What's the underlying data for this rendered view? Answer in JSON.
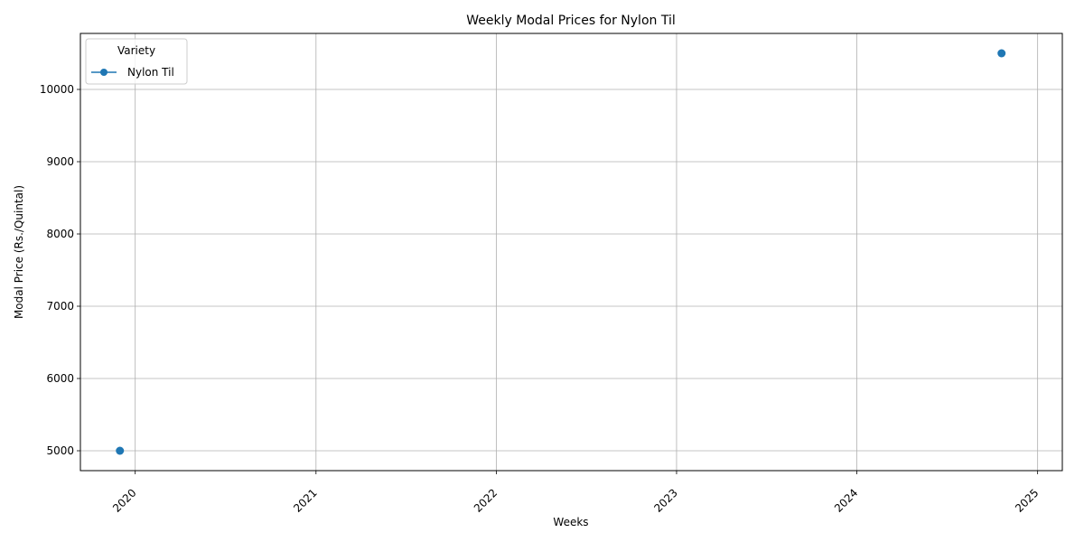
{
  "chart_data": {
    "type": "line",
    "title": "Weekly Modal Prices for Nylon Til",
    "xlabel": "Weeks",
    "ylabel": "Modal Price (Rs./Quintal)",
    "x_ticks": [
      "2020",
      "2021",
      "2022",
      "2023",
      "2024",
      "2025"
    ],
    "y_ticks": [
      5000,
      6000,
      7000,
      8000,
      9000,
      10000
    ],
    "xlim": [
      "2019-09-12",
      "2025-02-20"
    ],
    "ylim": [
      4725,
      10775
    ],
    "grid": true,
    "legend": {
      "title": "Variety",
      "placement": "top-left"
    },
    "series": [
      {
        "name": "Nylon Til",
        "color": "#1f77b4",
        "marker": "circle",
        "points": [
          {
            "x": "2019-12-01",
            "y": 5000
          },
          {
            "x": "2024-10-20",
            "y": 10500
          }
        ]
      }
    ]
  }
}
